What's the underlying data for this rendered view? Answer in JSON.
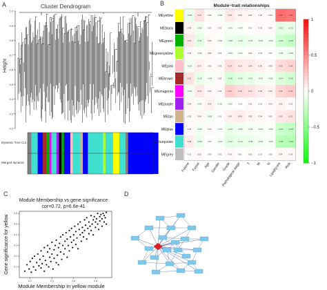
{
  "panels": {
    "A": {
      "letter": "A",
      "title": "Cluster Dendrogram",
      "ylabel": "Height",
      "yticks": [
        "1.0",
        "0.9",
        "0.8",
        "0.7",
        "0.6",
        "0.5",
        "0.4",
        "0.3",
        "0.2"
      ],
      "bar_labels": [
        "Dynamic Tree Cut",
        "Merged dynamic"
      ]
    },
    "B": {
      "letter": "B",
      "title": "Module−trait relationships"
    },
    "C": {
      "letter": "C",
      "title_line1": "Module Membership vs gene significance",
      "title_line2": "cor=0.72, p=6.6e-41"
    },
    "D": {
      "letter": "D",
      "hub_color": "#e02020",
      "node_color": "#7fc8ec"
    }
  },
  "chart_data": [
    {
      "type": "heatmap",
      "panel": "B",
      "title": "Module−trait relationships",
      "rows": [
        "MEyellow",
        "MEblack",
        "MEgreen",
        "MEgreenyellow",
        "MEpink",
        "MEbrown",
        "MEmagenta",
        "MEpurple",
        "MEtan",
        "MEblue",
        "MEturquoise",
        "MEgrey"
      ],
      "row_colors": [
        "#ffff00",
        "#000000",
        "#00b000",
        "#adff2f",
        "#ffc0cb",
        "#a52a2a",
        "#ff00ff",
        "#a020f0",
        "#d2b48c",
        "#0000ff",
        "#40e0d0",
        "#bebebe"
      ],
      "columns": [
        "Futime",
        "Fustat",
        "Age",
        "Gender",
        "Grade",
        "Pathological stage",
        "T",
        "M",
        "N",
        "LipidScore",
        "Risk"
      ],
      "values": [
        [
          -0.08,
          0.12,
          0.02,
          -0.03,
          0.09,
          0.05,
          0.04,
          0.02,
          0.03,
          0.62,
          0.58
        ],
        [
          0.05,
          -0.06,
          0.01,
          0.02,
          -0.04,
          -0.03,
          0.01,
          0.03,
          0.02,
          -0.12,
          -0.1
        ],
        [
          0.1,
          -0.11,
          0.03,
          -0.02,
          -0.08,
          -0.1,
          -0.07,
          -0.05,
          -0.04,
          -0.2,
          -0.25
        ],
        [
          0.03,
          -0.02,
          0.04,
          0.01,
          -0.03,
          -0.02,
          0.02,
          0.01,
          0.01,
          -0.05,
          -0.06
        ],
        [
          -0.05,
          0.07,
          0.02,
          0.03,
          0.14,
          0.1,
          0.09,
          0.06,
          0.03,
          0.15,
          0.18
        ],
        [
          0.12,
          -0.1,
          -0.04,
          0.02,
          -0.18,
          -0.12,
          -0.1,
          -0.06,
          -0.05,
          -0.14,
          -0.2
        ],
        [
          -0.06,
          0.1,
          0.03,
          0.02,
          0.21,
          0.15,
          0.12,
          0.08,
          0.05,
          0.18,
          0.22
        ],
        [
          0.04,
          -0.03,
          0.06,
          -0.02,
          -0.02,
          -0.01,
          0.02,
          0.01,
          0.03,
          0.05,
          0.02
        ],
        [
          0.02,
          0.04,
          -0.05,
          0.01,
          0.06,
          0.08,
          0.05,
          0.04,
          0.02,
          0.1,
          0.12
        ],
        [
          0.03,
          -0.05,
          0.02,
          -0.01,
          -0.1,
          -0.06,
          -0.04,
          -0.03,
          -0.02,
          -0.22,
          -0.26
        ],
        [
          0.08,
          -0.09,
          0.01,
          -0.03,
          -0.12,
          -0.1,
          -0.08,
          -0.05,
          -0.03,
          -0.3,
          -0.32
        ],
        [
          0.01,
          0.02,
          0.0,
          0.01,
          0.03,
          0.01,
          0.02,
          0.01,
          0.0,
          0.04,
          0.03
        ]
      ],
      "colorbar_ticks": [
        "1",
        "0.5",
        "0",
        "−0.5",
        "−1"
      ],
      "color_range": [
        -1,
        1
      ]
    },
    {
      "type": "scatter",
      "panel": "C",
      "title": "Module Membership vs gene significance",
      "subtitle": "cor=0.72, p=6.6e-41",
      "xlabel": "Module Membership in yellow module",
      "ylabel": "Gene significance for yellow",
      "xlim": [
        0.1,
        0.95
      ],
      "ylim": [
        0.0,
        0.62
      ],
      "x": [
        0.15,
        0.17,
        0.19,
        0.2,
        0.21,
        0.22,
        0.23,
        0.24,
        0.25,
        0.26,
        0.27,
        0.28,
        0.29,
        0.3,
        0.3,
        0.31,
        0.32,
        0.33,
        0.33,
        0.34,
        0.35,
        0.36,
        0.36,
        0.37,
        0.38,
        0.38,
        0.39,
        0.4,
        0.4,
        0.41,
        0.42,
        0.42,
        0.43,
        0.44,
        0.44,
        0.45,
        0.46,
        0.46,
        0.47,
        0.48,
        0.48,
        0.49,
        0.5,
        0.5,
        0.51,
        0.52,
        0.52,
        0.53,
        0.54,
        0.54,
        0.55,
        0.56,
        0.56,
        0.57,
        0.58,
        0.58,
        0.59,
        0.6,
        0.6,
        0.61,
        0.62,
        0.62,
        0.63,
        0.64,
        0.64,
        0.65,
        0.66,
        0.66,
        0.67,
        0.68,
        0.68,
        0.69,
        0.7,
        0.7,
        0.71,
        0.72,
        0.72,
        0.73,
        0.74,
        0.74,
        0.75,
        0.76,
        0.76,
        0.77,
        0.78,
        0.78,
        0.79,
        0.8,
        0.8,
        0.81,
        0.82,
        0.82,
        0.83,
        0.84,
        0.84,
        0.85,
        0.86,
        0.86,
        0.87,
        0.88,
        0.88,
        0.89,
        0.9,
        0.9
      ],
      "y": [
        0.06,
        0.12,
        0.08,
        0.15,
        0.05,
        0.18,
        0.1,
        0.2,
        0.07,
        0.14,
        0.22,
        0.11,
        0.17,
        0.09,
        0.25,
        0.13,
        0.2,
        0.06,
        0.28,
        0.16,
        0.12,
        0.24,
        0.3,
        0.1,
        0.19,
        0.27,
        0.15,
        0.22,
        0.33,
        0.08,
        0.26,
        0.18,
        0.3,
        0.14,
        0.35,
        0.21,
        0.28,
        0.12,
        0.32,
        0.24,
        0.38,
        0.17,
        0.3,
        0.4,
        0.22,
        0.34,
        0.27,
        0.42,
        0.19,
        0.36,
        0.3,
        0.44,
        0.25,
        0.38,
        0.33,
        0.46,
        0.28,
        0.4,
        0.35,
        0.48,
        0.31,
        0.43,
        0.37,
        0.5,
        0.27,
        0.45,
        0.4,
        0.52,
        0.34,
        0.47,
        0.42,
        0.38,
        0.54,
        0.44,
        0.49,
        0.36,
        0.56,
        0.46,
        0.41,
        0.52,
        0.48,
        0.58,
        0.44,
        0.5,
        0.54,
        0.4,
        0.57,
        0.52,
        0.47,
        0.55,
        0.6,
        0.5,
        0.45,
        0.57,
        0.53,
        0.59,
        0.48,
        0.55,
        0.6,
        0.52,
        0.58,
        0.56,
        0.5,
        0.61
      ]
    }
  ]
}
